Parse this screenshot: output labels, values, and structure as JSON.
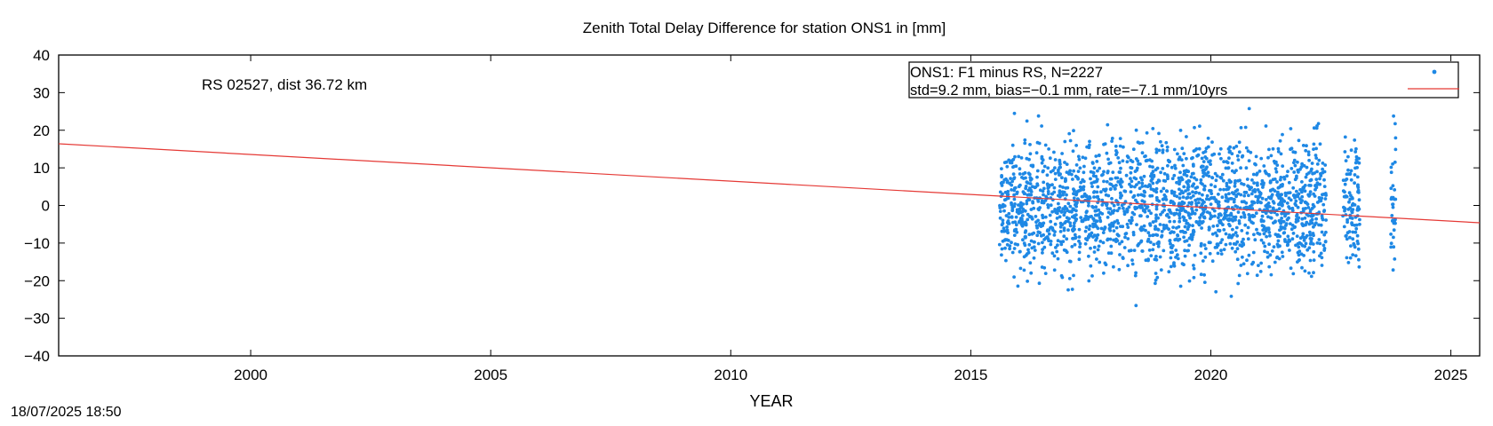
{
  "chart_data": {
    "type": "scatter",
    "title": "Zenith Total Delay Difference for station ONS1 in [mm]",
    "xlabel": "YEAR",
    "ylabel": "",
    "xlim": [
      1996,
      2025.6
    ],
    "ylim": [
      -40,
      40
    ],
    "x_ticks": [
      2000,
      2005,
      2010,
      2015,
      2020,
      2025
    ],
    "y_ticks": [
      -40,
      -30,
      -20,
      -10,
      0,
      10,
      20,
      30,
      40
    ],
    "grid": false,
    "annotation": "RS 02527, dist 36.72 km",
    "legend": {
      "position": "top-right",
      "entries": [
        "ONS1: F1 minus RS, N=2227",
        "std=9.2 mm, bias=−0.1 mm, rate=−7.1 mm/10yrs"
      ]
    },
    "series": [
      {
        "name": "ONS1: F1 minus RS, N=2227",
        "kind": "points",
        "color": "#1e88e5",
        "n": 2227,
        "std": 9.2,
        "bias": -0.1,
        "coverage": [
          [
            2015.6,
            2022.4
          ],
          [
            2022.75,
            2023.1
          ],
          [
            2023.75,
            2023.85
          ]
        ]
      },
      {
        "name": "std=9.2 mm, bias=−0.1 mm, rate=−7.1 mm/10yrs",
        "kind": "trend",
        "color": "#e53935",
        "x": [
          1996,
          2025.6
        ],
        "y": [
          16.4,
          -4.6
        ]
      }
    ],
    "footer_timestamp": "18/07/2025 18:50"
  }
}
